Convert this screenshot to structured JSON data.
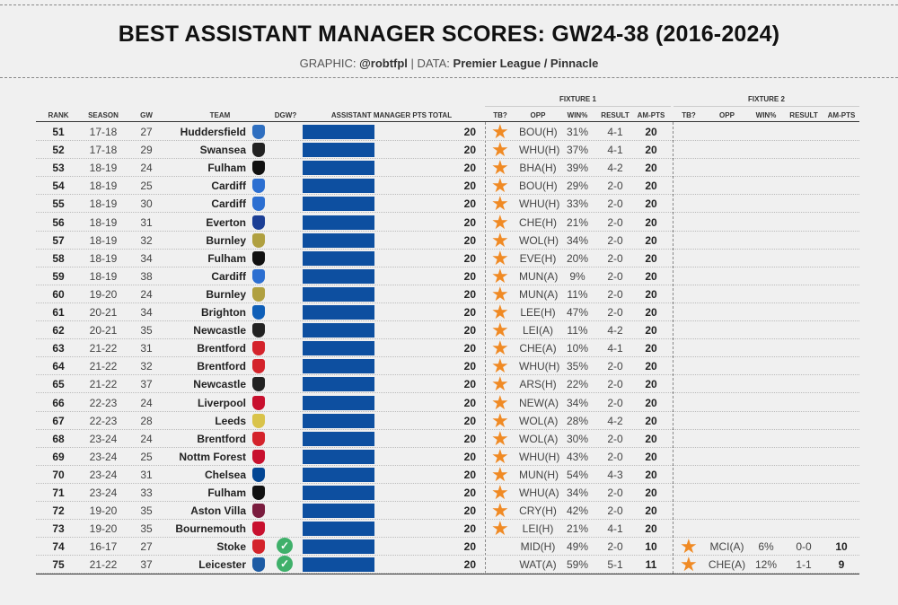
{
  "title": "BEST ASSISTANT MANAGER SCORES: GW24-38 (2016-2024)",
  "subtitle": {
    "graphic_label": "GRAPHIC:",
    "graphic_author": "@robtfpl",
    "separator": "|",
    "data_label": "DATA:",
    "data_source": "Premier League / Pinnacle"
  },
  "group_headers": {
    "fixture1": "FIXTURE 1",
    "fixture2": "FIXTURE 2"
  },
  "headers": {
    "rank": "RANK",
    "season": "SEASON",
    "gw": "GW",
    "team": "TEAM",
    "dgw": "DGW?",
    "am_total": "ASSISTANT MANAGER PTS TOTAL",
    "tb": "TB?",
    "opp": "OPP",
    "win": "WIN%",
    "result": "RESULT",
    "am_pts": "AM-PTS"
  },
  "colors": {
    "bar": "#0d4fa0",
    "star": "#f08a24",
    "check": "#3fb06a"
  },
  "chart_data": {
    "type": "table",
    "bar_max": 20,
    "rows": [
      {
        "rank": "51",
        "season": "17-18",
        "gw": "27",
        "team": "Huddersfield",
        "badge": "#2f6fc0",
        "dgw": false,
        "total": "20",
        "f1": {
          "tb": true,
          "opp": "BOU(H)",
          "win": "31%",
          "result": "4-1",
          "pts": "20"
        }
      },
      {
        "rank": "52",
        "season": "17-18",
        "gw": "29",
        "team": "Swansea",
        "badge": "#222222",
        "dgw": false,
        "total": "20",
        "f1": {
          "tb": true,
          "opp": "WHU(H)",
          "win": "37%",
          "result": "4-1",
          "pts": "20"
        }
      },
      {
        "rank": "53",
        "season": "18-19",
        "gw": "24",
        "team": "Fulham",
        "badge": "#111111",
        "dgw": false,
        "total": "20",
        "f1": {
          "tb": true,
          "opp": "BHA(H)",
          "win": "39%",
          "result": "4-2",
          "pts": "20"
        }
      },
      {
        "rank": "54",
        "season": "18-19",
        "gw": "25",
        "team": "Cardiff",
        "badge": "#2c6fd1",
        "dgw": false,
        "total": "20",
        "f1": {
          "tb": true,
          "opp": "BOU(H)",
          "win": "29%",
          "result": "2-0",
          "pts": "20"
        }
      },
      {
        "rank": "55",
        "season": "18-19",
        "gw": "30",
        "team": "Cardiff",
        "badge": "#2c6fd1",
        "dgw": false,
        "total": "20",
        "f1": {
          "tb": true,
          "opp": "WHU(H)",
          "win": "33%",
          "result": "2-0",
          "pts": "20"
        }
      },
      {
        "rank": "56",
        "season": "18-19",
        "gw": "31",
        "team": "Everton",
        "badge": "#1c3f95",
        "dgw": false,
        "total": "20",
        "f1": {
          "tb": true,
          "opp": "CHE(H)",
          "win": "21%",
          "result": "2-0",
          "pts": "20"
        }
      },
      {
        "rank": "57",
        "season": "18-19",
        "gw": "32",
        "team": "Burnley",
        "badge": "#b0a040",
        "dgw": false,
        "total": "20",
        "f1": {
          "tb": true,
          "opp": "WOL(H)",
          "win": "34%",
          "result": "2-0",
          "pts": "20"
        }
      },
      {
        "rank": "58",
        "season": "18-19",
        "gw": "34",
        "team": "Fulham",
        "badge": "#111111",
        "dgw": false,
        "total": "20",
        "f1": {
          "tb": true,
          "opp": "EVE(H)",
          "win": "20%",
          "result": "2-0",
          "pts": "20"
        }
      },
      {
        "rank": "59",
        "season": "18-19",
        "gw": "38",
        "team": "Cardiff",
        "badge": "#2c6fd1",
        "dgw": false,
        "total": "20",
        "f1": {
          "tb": true,
          "opp": "MUN(A)",
          "win": "9%",
          "result": "2-0",
          "pts": "20"
        }
      },
      {
        "rank": "60",
        "season": "19-20",
        "gw": "24",
        "team": "Burnley",
        "badge": "#b0a040",
        "dgw": false,
        "total": "20",
        "f1": {
          "tb": true,
          "opp": "MUN(A)",
          "win": "11%",
          "result": "2-0",
          "pts": "20"
        }
      },
      {
        "rank": "61",
        "season": "20-21",
        "gw": "34",
        "team": "Brighton",
        "badge": "#0f5fb8",
        "dgw": false,
        "total": "20",
        "f1": {
          "tb": true,
          "opp": "LEE(H)",
          "win": "47%",
          "result": "2-0",
          "pts": "20"
        }
      },
      {
        "rank": "62",
        "season": "20-21",
        "gw": "35",
        "team": "Newcastle",
        "badge": "#222222",
        "dgw": false,
        "total": "20",
        "f1": {
          "tb": true,
          "opp": "LEI(A)",
          "win": "11%",
          "result": "4-2",
          "pts": "20"
        }
      },
      {
        "rank": "63",
        "season": "21-22",
        "gw": "31",
        "team": "Brentford",
        "badge": "#d4232b",
        "dgw": false,
        "total": "20",
        "f1": {
          "tb": true,
          "opp": "CHE(A)",
          "win": "10%",
          "result": "4-1",
          "pts": "20"
        }
      },
      {
        "rank": "64",
        "season": "21-22",
        "gw": "32",
        "team": "Brentford",
        "badge": "#d4232b",
        "dgw": false,
        "total": "20",
        "f1": {
          "tb": true,
          "opp": "WHU(H)",
          "win": "35%",
          "result": "2-0",
          "pts": "20"
        }
      },
      {
        "rank": "65",
        "season": "21-22",
        "gw": "37",
        "team": "Newcastle",
        "badge": "#222222",
        "dgw": false,
        "total": "20",
        "f1": {
          "tb": true,
          "opp": "ARS(H)",
          "win": "22%",
          "result": "2-0",
          "pts": "20"
        }
      },
      {
        "rank": "66",
        "season": "22-23",
        "gw": "24",
        "team": "Liverpool",
        "badge": "#c8102e",
        "dgw": false,
        "total": "20",
        "f1": {
          "tb": true,
          "opp": "NEW(A)",
          "win": "34%",
          "result": "2-0",
          "pts": "20"
        }
      },
      {
        "rank": "67",
        "season": "22-23",
        "gw": "28",
        "team": "Leeds",
        "badge": "#d9c34a",
        "dgw": false,
        "total": "20",
        "f1": {
          "tb": true,
          "opp": "WOL(A)",
          "win": "28%",
          "result": "4-2",
          "pts": "20"
        }
      },
      {
        "rank": "68",
        "season": "23-24",
        "gw": "24",
        "team": "Brentford",
        "badge": "#d4232b",
        "dgw": false,
        "total": "20",
        "f1": {
          "tb": true,
          "opp": "WOL(A)",
          "win": "30%",
          "result": "2-0",
          "pts": "20"
        }
      },
      {
        "rank": "69",
        "season": "23-24",
        "gw": "25",
        "team": "Nottm Forest",
        "badge": "#c8102e",
        "dgw": false,
        "total": "20",
        "f1": {
          "tb": true,
          "opp": "WHU(H)",
          "win": "43%",
          "result": "2-0",
          "pts": "20"
        }
      },
      {
        "rank": "70",
        "season": "23-24",
        "gw": "31",
        "team": "Chelsea",
        "badge": "#034694",
        "dgw": false,
        "total": "20",
        "f1": {
          "tb": true,
          "opp": "MUN(H)",
          "win": "54%",
          "result": "4-3",
          "pts": "20"
        }
      },
      {
        "rank": "71",
        "season": "23-24",
        "gw": "33",
        "team": "Fulham",
        "badge": "#111111",
        "dgw": false,
        "total": "20",
        "f1": {
          "tb": true,
          "opp": "WHU(A)",
          "win": "34%",
          "result": "2-0",
          "pts": "20"
        }
      },
      {
        "rank": "72",
        "season": "19-20",
        "gw": "35",
        "team": "Aston Villa",
        "badge": "#7a1c3e",
        "dgw": false,
        "total": "20",
        "f1": {
          "tb": true,
          "opp": "CRY(H)",
          "win": "42%",
          "result": "2-0",
          "pts": "20"
        }
      },
      {
        "rank": "73",
        "season": "19-20",
        "gw": "35",
        "team": "Bournemouth",
        "badge": "#c8102e",
        "dgw": false,
        "total": "20",
        "f1": {
          "tb": true,
          "opp": "LEI(H)",
          "win": "21%",
          "result": "4-1",
          "pts": "20"
        }
      },
      {
        "rank": "74",
        "season": "16-17",
        "gw": "27",
        "team": "Stoke",
        "badge": "#d4232b",
        "dgw": true,
        "total": "20",
        "f1": {
          "tb": false,
          "opp": "MID(H)",
          "win": "49%",
          "result": "2-0",
          "pts": "10"
        },
        "f2": {
          "tb": true,
          "opp": "MCI(A)",
          "win": "6%",
          "result": "0-0",
          "pts": "10"
        }
      },
      {
        "rank": "75",
        "season": "21-22",
        "gw": "37",
        "team": "Leicester",
        "badge": "#1d5ba4",
        "dgw": true,
        "total": "20",
        "f1": {
          "tb": false,
          "opp": "WAT(A)",
          "win": "59%",
          "result": "5-1",
          "pts": "11"
        },
        "f2": {
          "tb": true,
          "opp": "CHE(A)",
          "win": "12%",
          "result": "1-1",
          "pts": "9"
        }
      }
    ]
  }
}
